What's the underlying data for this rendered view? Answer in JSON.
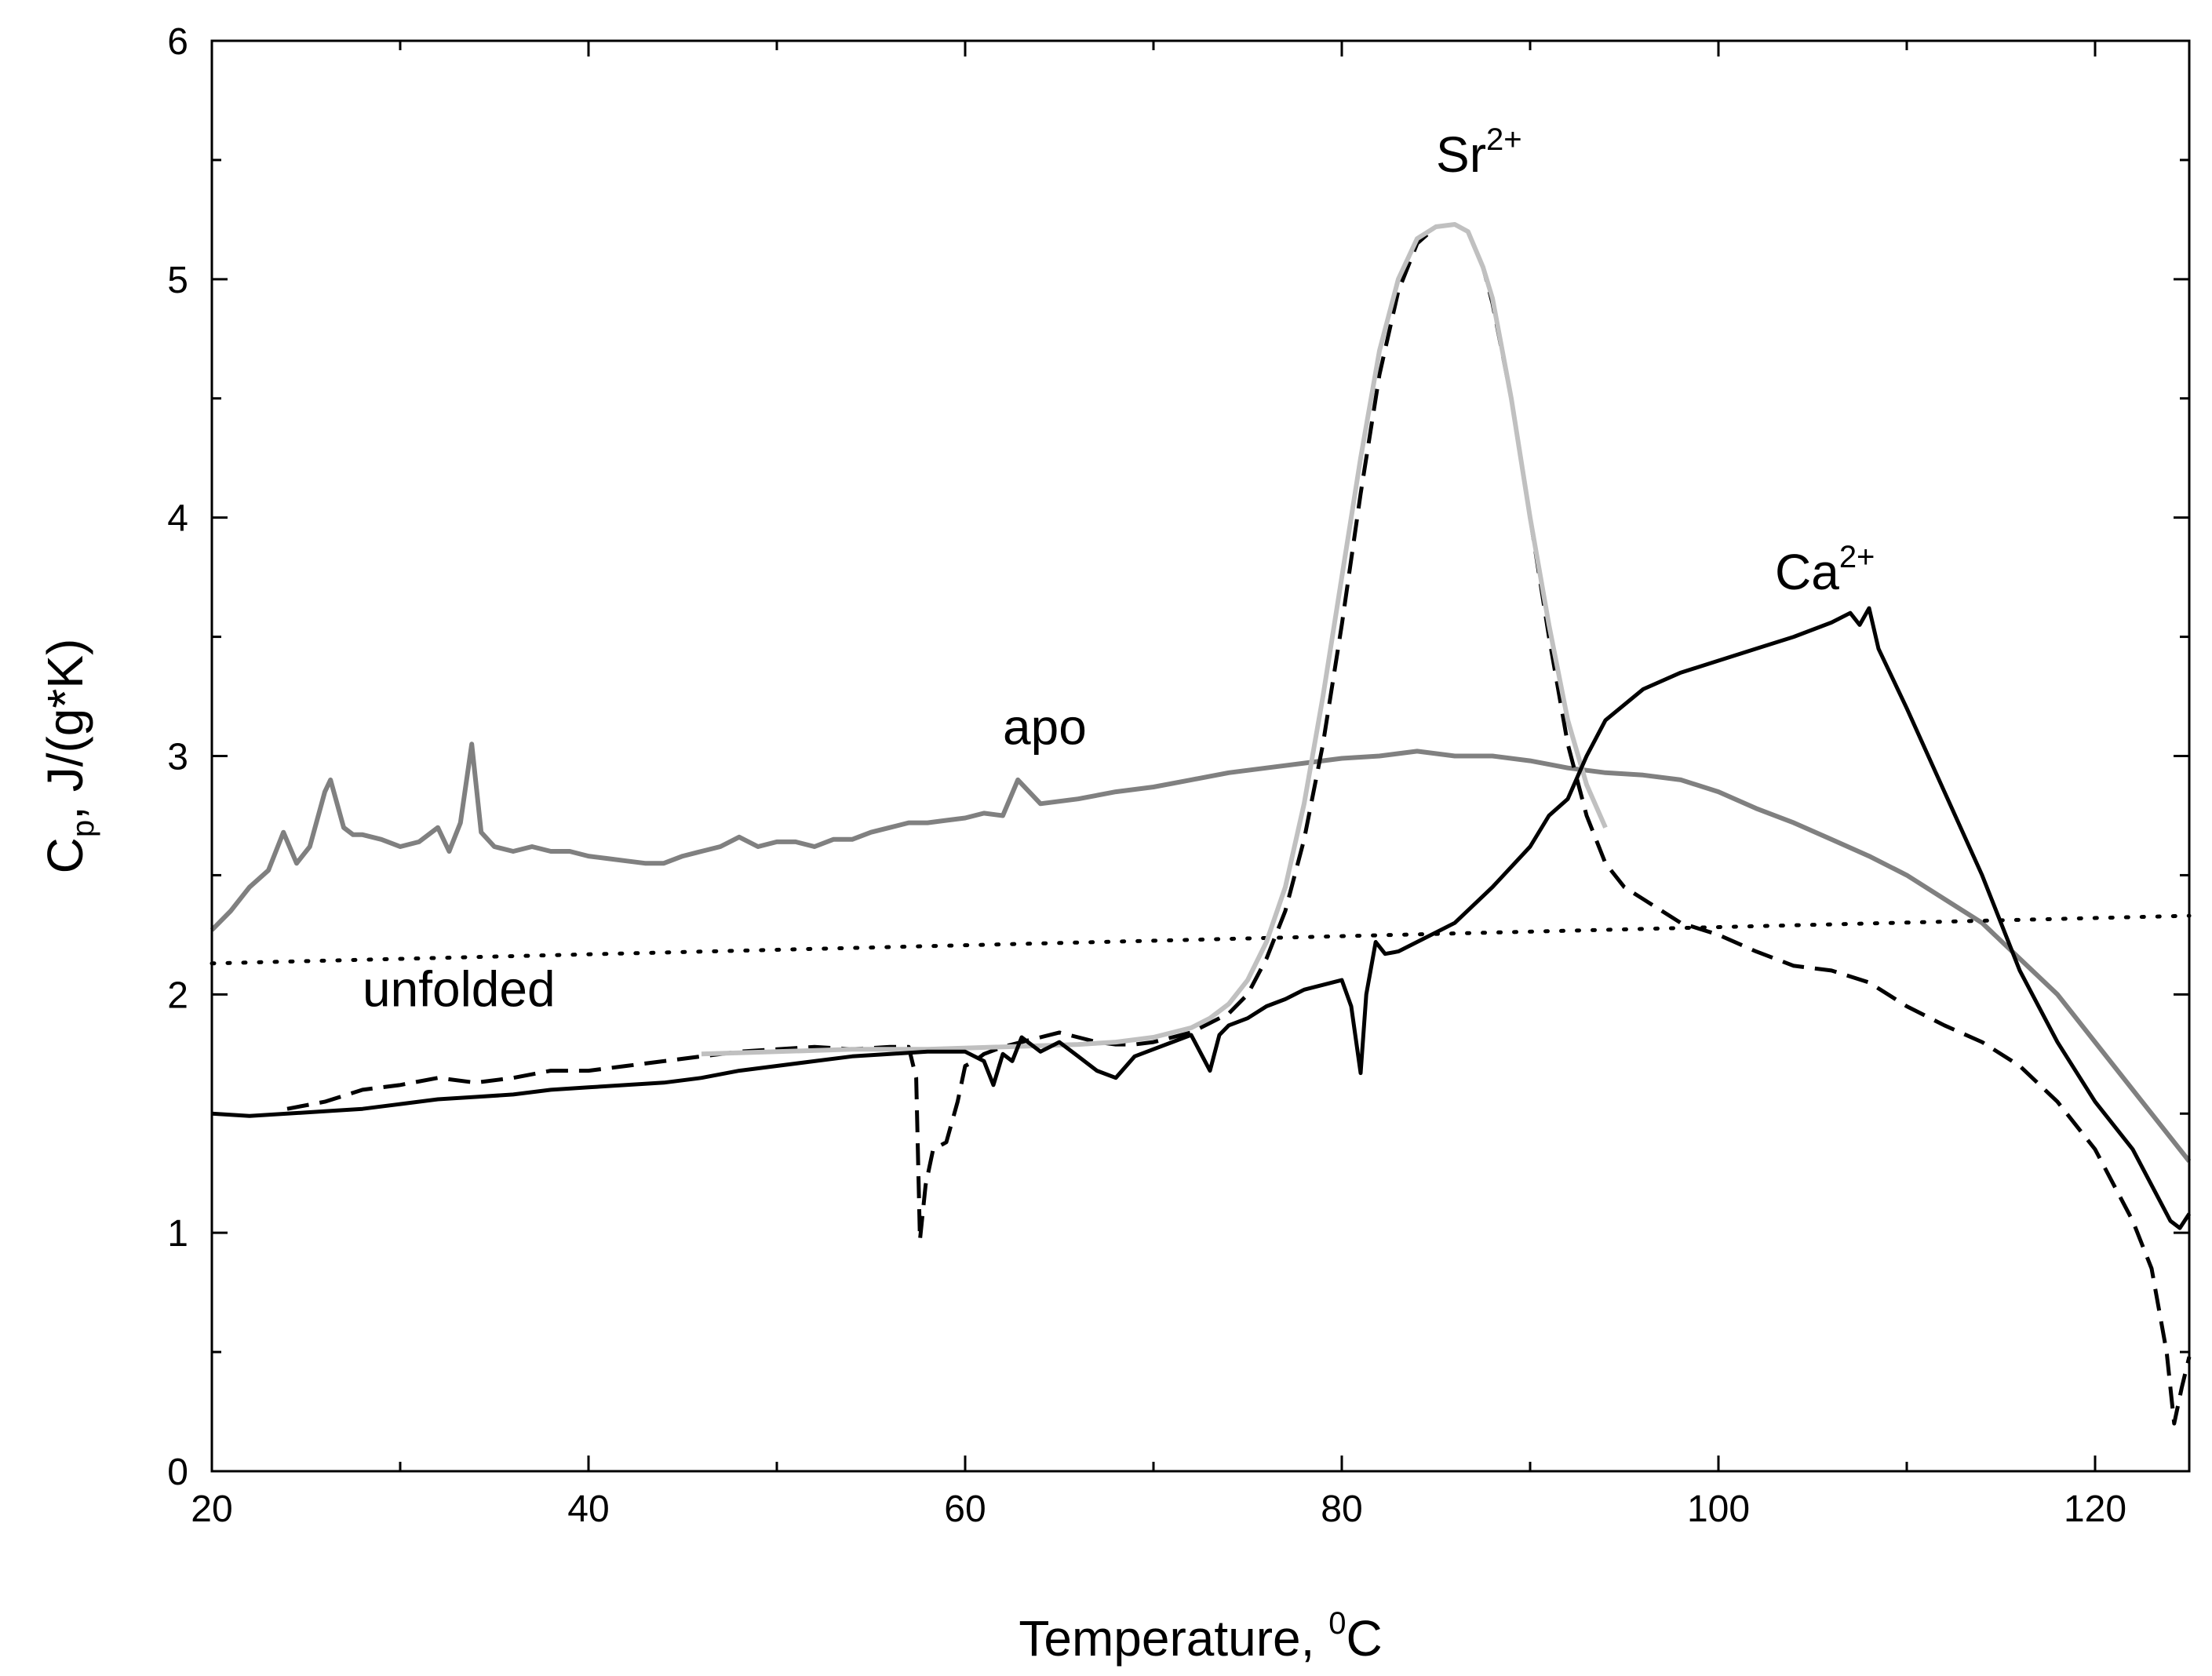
{
  "chart_data": {
    "type": "line",
    "title": "",
    "xlabel": {
      "main": "Temperature, ",
      "sup": "0",
      "tail": "C"
    },
    "ylabel": {
      "main": "C",
      "sub": "p",
      "tail": ", J/(g*K)"
    },
    "xlim": [
      20,
      125
    ],
    "ylim": [
      0,
      6
    ],
    "xticks": [
      20,
      40,
      60,
      80,
      100,
      120
    ],
    "yticks": [
      0,
      1,
      2,
      3,
      4,
      5,
      6
    ],
    "colors": {
      "black": "#000000",
      "gray": "#808080",
      "lightgray": "#c0c0c0"
    },
    "annotations": [
      {
        "name": "annotation-apo",
        "text": "apo",
        "x": 62,
        "y": 3.05
      },
      {
        "name": "annotation-unfolded",
        "text": "unfolded",
        "x": 28,
        "y": 1.95
      },
      {
        "name": "annotation-sr",
        "text": "Sr",
        "sup": "2+",
        "x": 85,
        "y": 5.45
      },
      {
        "name": "annotation-ca",
        "text": "Ca",
        "sup": "2+",
        "x": 103,
        "y": 3.7
      }
    ],
    "series": [
      {
        "name": "apo",
        "style": "gray-solid",
        "x": [
          20,
          21,
          22,
          23,
          23.8,
          24.5,
          25.2,
          26,
          26.3,
          27,
          27.5,
          28,
          29,
          30,
          31,
          32,
          32.6,
          33.2,
          33.8,
          34.3,
          35,
          36,
          37,
          38,
          39,
          40,
          41,
          42,
          43,
          44,
          45,
          46,
          47,
          48,
          49,
          50,
          51,
          52,
          53,
          54,
          55,
          56,
          57,
          58,
          59,
          60,
          61,
          62,
          62.8,
          64,
          66,
          68,
          70,
          72,
          74,
          76,
          78,
          80,
          82,
          84,
          86,
          88,
          90,
          92,
          94,
          96,
          98,
          100,
          102,
          104,
          106,
          108,
          110,
          112,
          114,
          116,
          118,
          120,
          122,
          124,
          125
        ],
        "y": [
          2.27,
          2.35,
          2.45,
          2.52,
          2.68,
          2.55,
          2.62,
          2.85,
          2.9,
          2.7,
          2.67,
          2.67,
          2.65,
          2.62,
          2.64,
          2.7,
          2.6,
          2.72,
          3.05,
          2.68,
          2.62,
          2.6,
          2.62,
          2.6,
          2.6,
          2.58,
          2.57,
          2.56,
          2.55,
          2.55,
          2.58,
          2.6,
          2.62,
          2.66,
          2.62,
          2.64,
          2.64,
          2.62,
          2.65,
          2.65,
          2.68,
          2.7,
          2.72,
          2.72,
          2.73,
          2.74,
          2.76,
          2.75,
          2.9,
          2.8,
          2.82,
          2.85,
          2.87,
          2.9,
          2.93,
          2.95,
          2.97,
          2.99,
          3.0,
          3.02,
          3.0,
          3.0,
          2.98,
          2.95,
          2.93,
          2.92,
          2.9,
          2.85,
          2.78,
          2.72,
          2.65,
          2.58,
          2.5,
          2.4,
          2.3,
          2.15,
          2.0,
          1.8,
          1.6,
          1.4,
          1.3
        ]
      },
      {
        "name": "unfolded",
        "style": "black-dotted",
        "x": [
          20,
          125
        ],
        "y": [
          2.13,
          2.33
        ]
      },
      {
        "name": "Sr2+",
        "style": "black-dashed",
        "x": [
          24,
          26,
          28,
          30,
          32,
          34,
          36,
          38,
          40,
          42,
          44,
          46,
          48,
          50,
          52,
          54,
          56,
          57,
          57.4,
          57.6,
          57.9,
          58.3,
          59,
          59.6,
          60,
          60.5,
          61,
          62,
          63,
          64,
          65,
          66,
          67,
          68,
          69,
          70,
          71,
          72,
          73,
          74,
          75,
          76,
          77,
          78,
          79,
          80,
          81,
          82,
          83,
          84,
          85,
          86,
          86.7,
          87.5,
          88,
          89,
          90,
          91,
          92,
          93,
          94,
          95,
          96,
          97,
          98,
          100,
          102,
          104,
          106,
          108,
          110,
          112,
          114,
          116,
          118,
          120,
          121,
          122,
          123,
          123.8,
          124.2,
          124.6,
          125
        ],
        "y": [
          1.52,
          1.55,
          1.6,
          1.62,
          1.65,
          1.63,
          1.65,
          1.68,
          1.68,
          1.7,
          1.72,
          1.74,
          1.76,
          1.77,
          1.78,
          1.77,
          1.78,
          1.78,
          1.65,
          0.97,
          1.2,
          1.35,
          1.38,
          1.55,
          1.7,
          1.72,
          1.75,
          1.78,
          1.8,
          1.82,
          1.84,
          1.82,
          1.8,
          1.79,
          1.79,
          1.8,
          1.82,
          1.84,
          1.88,
          1.92,
          2.0,
          2.15,
          2.35,
          2.65,
          3.05,
          3.55,
          4.1,
          4.6,
          4.95,
          5.15,
          5.22,
          5.23,
          5.2,
          5.05,
          4.9,
          4.5,
          4.0,
          3.5,
          3.05,
          2.75,
          2.55,
          2.45,
          2.4,
          2.35,
          2.3,
          2.25,
          2.18,
          2.12,
          2.1,
          2.05,
          1.95,
          1.87,
          1.8,
          1.7,
          1.55,
          1.35,
          1.2,
          1.05,
          0.85,
          0.5,
          0.2,
          0.35,
          0.48
        ]
      },
      {
        "name": "Sr2+ fit",
        "style": "lightgray-solid",
        "x": [
          46,
          50,
          54,
          58,
          62,
          66,
          68,
          70,
          72,
          73,
          74,
          75,
          76,
          77,
          78,
          79,
          80,
          81,
          82,
          83,
          84,
          85,
          86,
          86.7,
          87.5,
          88,
          89,
          90,
          91,
          92,
          93,
          94
        ],
        "y": [
          1.75,
          1.76,
          1.77,
          1.77,
          1.78,
          1.79,
          1.8,
          1.82,
          1.86,
          1.9,
          1.96,
          2.06,
          2.22,
          2.45,
          2.8,
          3.25,
          3.75,
          4.25,
          4.7,
          5.0,
          5.17,
          5.22,
          5.23,
          5.2,
          5.05,
          4.92,
          4.5,
          4.0,
          3.55,
          3.15,
          2.88,
          2.7
        ]
      },
      {
        "name": "Ca2+",
        "style": "black-solid",
        "x": [
          20,
          22,
          24,
          26,
          28,
          30,
          32,
          34,
          36,
          38,
          40,
          42,
          44,
          46,
          48,
          50,
          52,
          54,
          56,
          58,
          60,
          61,
          61.5,
          62,
          62.5,
          63,
          64,
          65,
          66,
          67,
          68,
          69,
          70,
          71,
          72,
          73,
          73.5,
          74,
          75,
          76,
          77,
          78,
          79,
          80,
          80.5,
          81,
          81.3,
          81.8,
          82.3,
          83,
          84,
          86,
          88,
          90,
          91,
          92,
          93,
          94,
          96,
          98,
          100,
          102,
          104,
          106,
          107,
          107.5,
          108,
          108.5,
          110,
          112,
          114,
          116,
          118,
          120,
          122,
          123,
          124,
          124.5,
          125
        ],
        "y": [
          1.5,
          1.49,
          1.5,
          1.51,
          1.52,
          1.54,
          1.56,
          1.57,
          1.58,
          1.6,
          1.61,
          1.62,
          1.63,
          1.65,
          1.68,
          1.7,
          1.72,
          1.74,
          1.75,
          1.76,
          1.76,
          1.72,
          1.62,
          1.75,
          1.72,
          1.82,
          1.76,
          1.8,
          1.74,
          1.68,
          1.65,
          1.74,
          1.77,
          1.8,
          1.83,
          1.68,
          1.83,
          1.87,
          1.9,
          1.95,
          1.98,
          2.02,
          2.04,
          2.06,
          1.95,
          1.67,
          2.0,
          2.22,
          2.17,
          2.18,
          2.22,
          2.3,
          2.45,
          2.62,
          2.75,
          2.82,
          3.0,
          3.15,
          3.28,
          3.35,
          3.4,
          3.45,
          3.5,
          3.56,
          3.6,
          3.55,
          3.62,
          3.45,
          3.2,
          2.85,
          2.5,
          2.1,
          1.8,
          1.55,
          1.35,
          1.2,
          1.05,
          1.02,
          1.08
        ]
      }
    ]
  }
}
